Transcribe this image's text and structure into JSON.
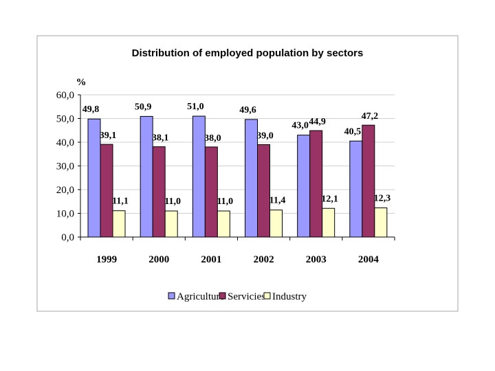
{
  "chart_data": {
    "type": "bar",
    "title": "Distribution of employed population by sectors",
    "ylabel": "%",
    "xlabel": "",
    "ylim": [
      0,
      60
    ],
    "ytick_step": 10,
    "ytick_labels": [
      "0,0",
      "10,0",
      "20,0",
      "30,0",
      "40,0",
      "50,0",
      "60,0"
    ],
    "grid": true,
    "legend_position": "bottom",
    "categories": [
      "1999",
      "2000",
      "2001",
      "2002",
      "2003",
      "2004"
    ],
    "series": [
      {
        "name": "Agriculture",
        "color": "#9999ff",
        "values": [
          49.8,
          50.9,
          51.0,
          49.6,
          43.0,
          40.5
        ],
        "labels": [
          "49,8",
          "50,9",
          "51,0",
          "49,6",
          "43,0",
          "40,5"
        ]
      },
      {
        "name": "Servicies",
        "color": "#993366",
        "values": [
          39.1,
          38.1,
          38.0,
          39.0,
          44.9,
          47.2
        ],
        "labels": [
          "39,1",
          "38,1",
          "38,0",
          "39,0",
          "44,9",
          "47,2"
        ]
      },
      {
        "name": "Industry",
        "color": "#ffffcc",
        "values": [
          11.1,
          11.0,
          11.0,
          11.4,
          12.1,
          12.3
        ],
        "labels": [
          "11,1",
          "11,0",
          "11,0",
          "11,4",
          "12,1",
          "12,3"
        ]
      }
    ]
  }
}
